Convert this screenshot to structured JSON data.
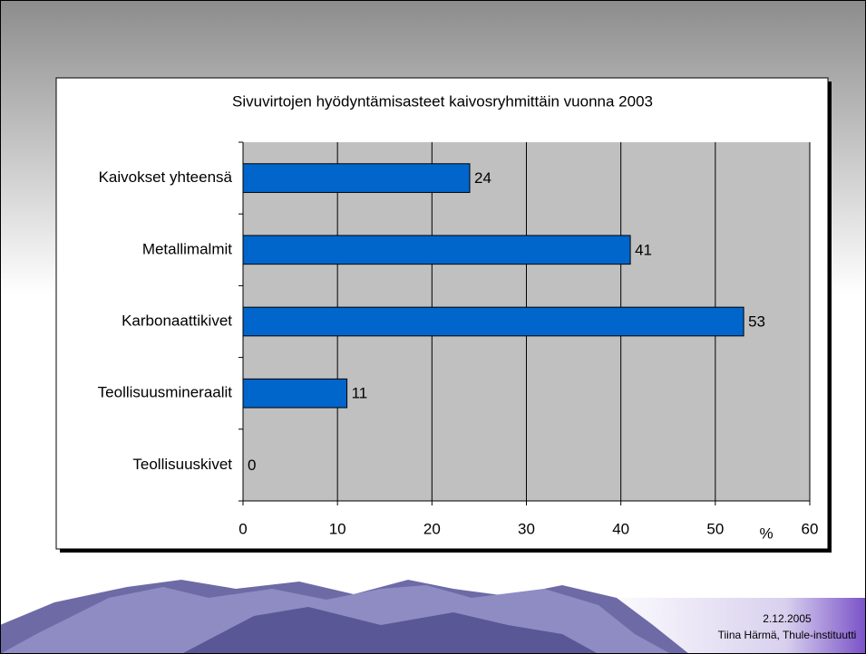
{
  "chart_data": {
    "type": "bar",
    "orientation": "horizontal",
    "title": "Sivuvirtojen hyödyntämisasteet kaivosryhmittäin vuonna 2003",
    "categories": [
      "Kaivokset yhteensä",
      "Metallimalmit",
      "Karbonaattikivet",
      "Teollisuusmineraalit",
      "Teollisuuskivet"
    ],
    "values": [
      24,
      41,
      53,
      11,
      0
    ],
    "color": "#0066cc",
    "xlim": [
      0,
      60
    ],
    "xticks": [
      0,
      10,
      20,
      30,
      40,
      50,
      60
    ],
    "x_label": "%",
    "grid": true
  },
  "footer": {
    "date": "2.12.2005",
    "author": "Tiina Härmä, Thule-instituutti"
  }
}
